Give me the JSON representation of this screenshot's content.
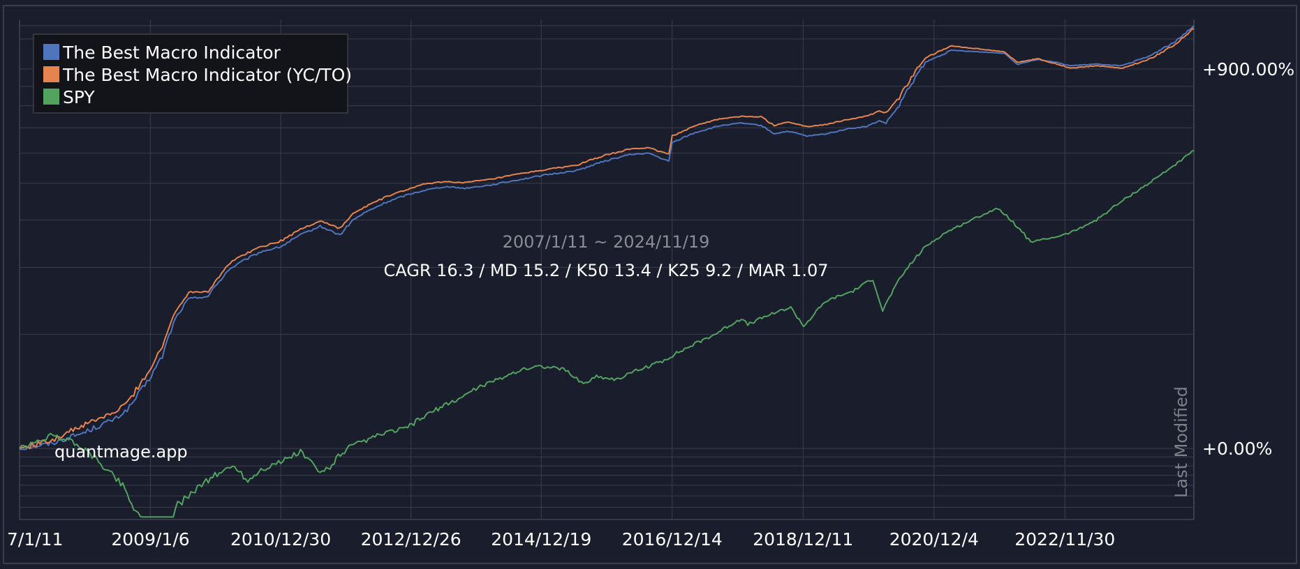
{
  "chart_data": {
    "type": "line",
    "subtitle": "2007/1/11 ~ 2024/11/19",
    "stats_line": "CAGR 16.3 / MD 15.2 / K50 13.4 / K25 9.2 / MAR 1.07",
    "watermark": "quantmage.app",
    "side_label": "Last Modified",
    "x_tick_labels": [
      "7/1/11",
      "2009/1/6",
      "2010/12/30",
      "2012/12/26",
      "2014/12/19",
      "2016/12/14",
      "2018/12/11",
      "2020/12/4",
      "2022/11/30"
    ],
    "x_tick_positions": [
      2007.03,
      2009.02,
      2011.0,
      2012.98,
      2014.96,
      2016.95,
      2018.94,
      2020.93,
      2022.92
    ],
    "x_range": [
      2007.03,
      2024.88
    ],
    "y_tick_labels": [
      "+0.00%",
      "+900.00%"
    ],
    "y_scale": "log",
    "y_range": [
      -35,
      1250
    ],
    "legend_placement": "top-left",
    "grid": true,
    "series": [
      {
        "name": "The Best Macro Indicator",
        "color": "#4f75bd",
        "x": [
          2007.03,
          2007.5,
          2008.0,
          2008.5,
          2008.7,
          2009.0,
          2009.2,
          2009.4,
          2009.6,
          2009.9,
          2010.2,
          2010.4,
          2010.7,
          2011.0,
          2011.3,
          2011.6,
          2011.9,
          2012.1,
          2012.3,
          2012.6,
          2012.9,
          2013.2,
          2013.5,
          2013.8,
          2014.2,
          2014.6,
          2015.0,
          2015.5,
          2015.9,
          2016.3,
          2016.6,
          2016.9,
          2016.95,
          2017.3,
          2017.7,
          2018.0,
          2018.3,
          2018.5,
          2018.7,
          2018.8,
          2019.0,
          2019.3,
          2019.6,
          2019.9,
          2020.1,
          2020.2,
          2020.4,
          2020.8,
          2021.2,
          2021.6,
          2022.0,
          2022.2,
          2022.5,
          2022.8,
          2023.0,
          2023.4,
          2023.8,
          2024.2,
          2024.6,
          2024.88
        ],
        "values": [
          0,
          3,
          10,
          20,
          28,
          52,
          75,
          120,
          148,
          152,
          195,
          210,
          230,
          240,
          265,
          285,
          265,
          300,
          320,
          345,
          365,
          380,
          390,
          385,
          395,
          410,
          425,
          440,
          470,
          495,
          500,
          470,
          540,
          580,
          610,
          620,
          610,
          575,
          585,
          580,
          565,
          575,
          595,
          605,
          630,
          620,
          700,
          940,
          1020,
          1010,
          1000,
          930,
          960,
          940,
          920,
          930,
          920,
          980,
          1080,
          1200
        ]
      },
      {
        "name": "The Best Macro Indicator (YC/TO)",
        "color": "#e5844e",
        "x": [
          2007.03,
          2007.5,
          2008.0,
          2008.5,
          2008.7,
          2009.0,
          2009.2,
          2009.4,
          2009.6,
          2009.9,
          2010.2,
          2010.4,
          2010.7,
          2011.0,
          2011.3,
          2011.6,
          2011.9,
          2012.1,
          2012.3,
          2012.6,
          2012.9,
          2013.2,
          2013.5,
          2013.8,
          2014.2,
          2014.6,
          2015.0,
          2015.5,
          2015.9,
          2016.3,
          2016.6,
          2016.9,
          2016.95,
          2017.3,
          2017.7,
          2018.0,
          2018.3,
          2018.5,
          2018.7,
          2018.8,
          2019.0,
          2019.3,
          2019.6,
          2019.9,
          2020.1,
          2020.2,
          2020.4,
          2020.8,
          2021.2,
          2021.6,
          2022.0,
          2022.2,
          2022.5,
          2022.8,
          2023.0,
          2023.4,
          2023.8,
          2024.2,
          2024.6,
          2024.88
        ],
        "values": [
          0,
          5,
          15,
          25,
          34,
          60,
          85,
          130,
          158,
          160,
          205,
          222,
          240,
          252,
          278,
          298,
          280,
          315,
          335,
          360,
          380,
          398,
          405,
          402,
          412,
          428,
          442,
          458,
          490,
          515,
          520,
          495,
          565,
          610,
          640,
          650,
          648,
          610,
          625,
          620,
          605,
          615,
          635,
          650,
          675,
          665,
          740,
          970,
          1050,
          1030,
          1010,
          940,
          965,
          930,
          905,
          920,
          905,
          960,
          1060,
          1180
        ]
      },
      {
        "name": "SPY",
        "color": "#52a35f",
        "x": [
          2007.03,
          2007.3,
          2007.5,
          2007.8,
          2008.0,
          2008.3,
          2008.6,
          2008.8,
          2009.0,
          2009.2,
          2009.4,
          2009.7,
          2010.0,
          2010.3,
          2010.5,
          2010.7,
          2011.0,
          2011.3,
          2011.6,
          2011.75,
          2012.0,
          2012.3,
          2012.6,
          2012.9,
          2013.3,
          2013.7,
          2014.0,
          2014.3,
          2014.6,
          2014.9,
          2015.3,
          2015.6,
          2015.8,
          2016.1,
          2016.4,
          2016.8,
          2017.2,
          2017.6,
          2018.0,
          2018.1,
          2018.5,
          2018.75,
          2018.95,
          2019.3,
          2019.7,
          2020.0,
          2020.15,
          2020.25,
          2020.5,
          2020.8,
          2021.1,
          2021.5,
          2021.9,
          2022.1,
          2022.4,
          2022.75,
          2023.0,
          2023.4,
          2023.8,
          2024.2,
          2024.6,
          2024.88
        ],
        "values": [
          0,
          4,
          8,
          5,
          0,
          -10,
          -20,
          -32,
          -38,
          -50,
          -30,
          -22,
          -15,
          -10,
          -18,
          -12,
          -8,
          -2,
          -14,
          -10,
          0,
          5,
          10,
          13,
          25,
          35,
          45,
          52,
          60,
          65,
          62,
          48,
          55,
          52,
          60,
          70,
          85,
          100,
          120,
          112,
          128,
          135,
          110,
          145,
          160,
          180,
          130,
          150,
          195,
          240,
          270,
          300,
          330,
          300,
          250,
          260,
          270,
          300,
          350,
          400,
          460,
          510
        ]
      }
    ]
  }
}
